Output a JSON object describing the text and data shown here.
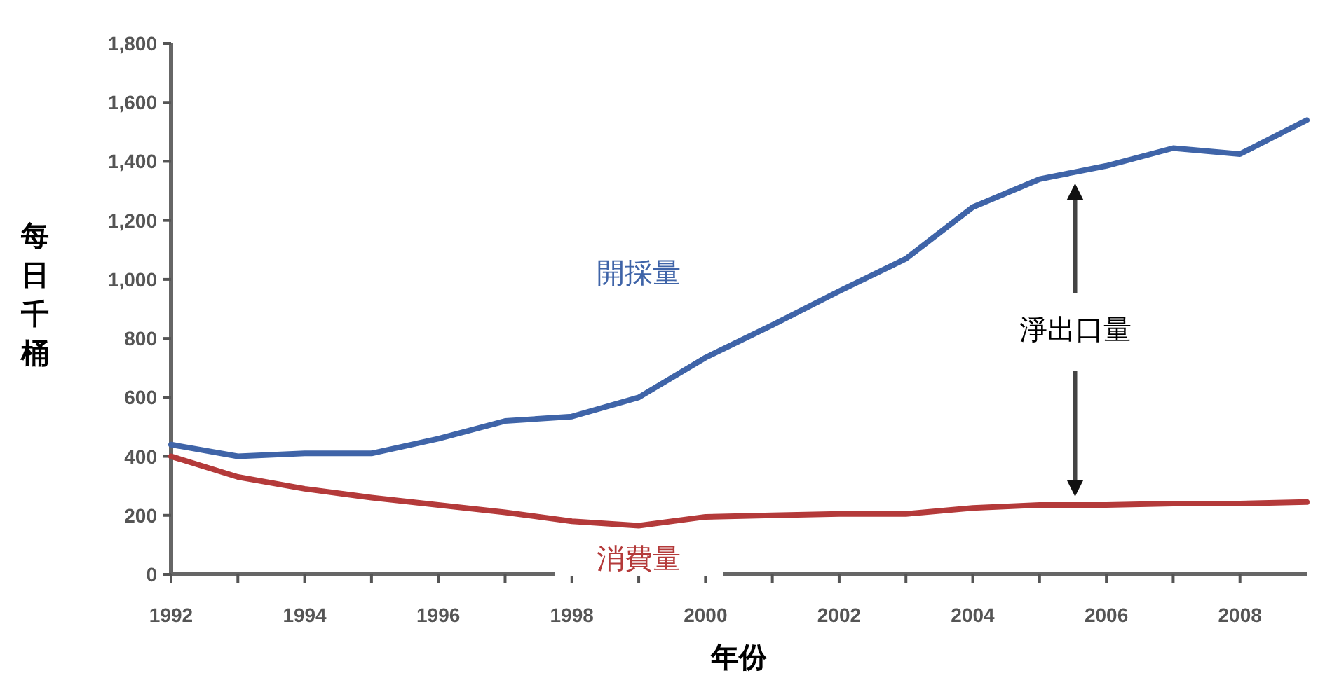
{
  "chart_data": {
    "type": "line",
    "xlabel": "年份",
    "ylabel": "每日千桶",
    "x": [
      1992,
      1993,
      1994,
      1995,
      1996,
      1997,
      1998,
      1999,
      2000,
      2001,
      2002,
      2003,
      2004,
      2005,
      2006,
      2007,
      2008,
      2009
    ],
    "series": [
      {
        "name": "開採量",
        "color": "#3f64a8",
        "values": [
          440,
          400,
          410,
          410,
          460,
          520,
          535,
          600,
          735,
          845,
          960,
          1070,
          1245,
          1340,
          1385,
          1445,
          1425,
          1540
        ]
      },
      {
        "name": "消費量",
        "color": "#b43a3a",
        "values": [
          400,
          330,
          290,
          260,
          235,
          210,
          180,
          165,
          195,
          200,
          205,
          205,
          225,
          235,
          235,
          240,
          240,
          245
        ]
      }
    ],
    "xlim": [
      1992,
      2009
    ],
    "xticks": [
      1992,
      {
        "value": 1993,
        "label": null
      },
      1994,
      {
        "value": 1995,
        "label": null
      },
      1996,
      {
        "value": 1997,
        "label": null
      },
      1998,
      {
        "value": 1999,
        "label": null
      },
      2000,
      {
        "value": 2001,
        "label": null
      },
      2002,
      {
        "value": 2003,
        "label": null
      },
      2004,
      {
        "value": 2005,
        "label": null
      },
      2006,
      {
        "value": 2007,
        "label": null
      },
      2008
    ],
    "ylim": [
      0,
      1800
    ],
    "yticks": [
      0,
      200,
      400,
      600,
      800,
      {
        "value": 1000,
        "label": "1,000"
      },
      {
        "value": 1200,
        "label": "1,200"
      },
      {
        "value": 1400,
        "label": "1,400"
      },
      {
        "value": 1600,
        "label": "1,600"
      },
      {
        "value": 1800,
        "label": "1,800"
      }
    ],
    "grid": false,
    "marker": "none",
    "line_style": "solid",
    "annotations": [
      "淨出口量"
    ]
  }
}
